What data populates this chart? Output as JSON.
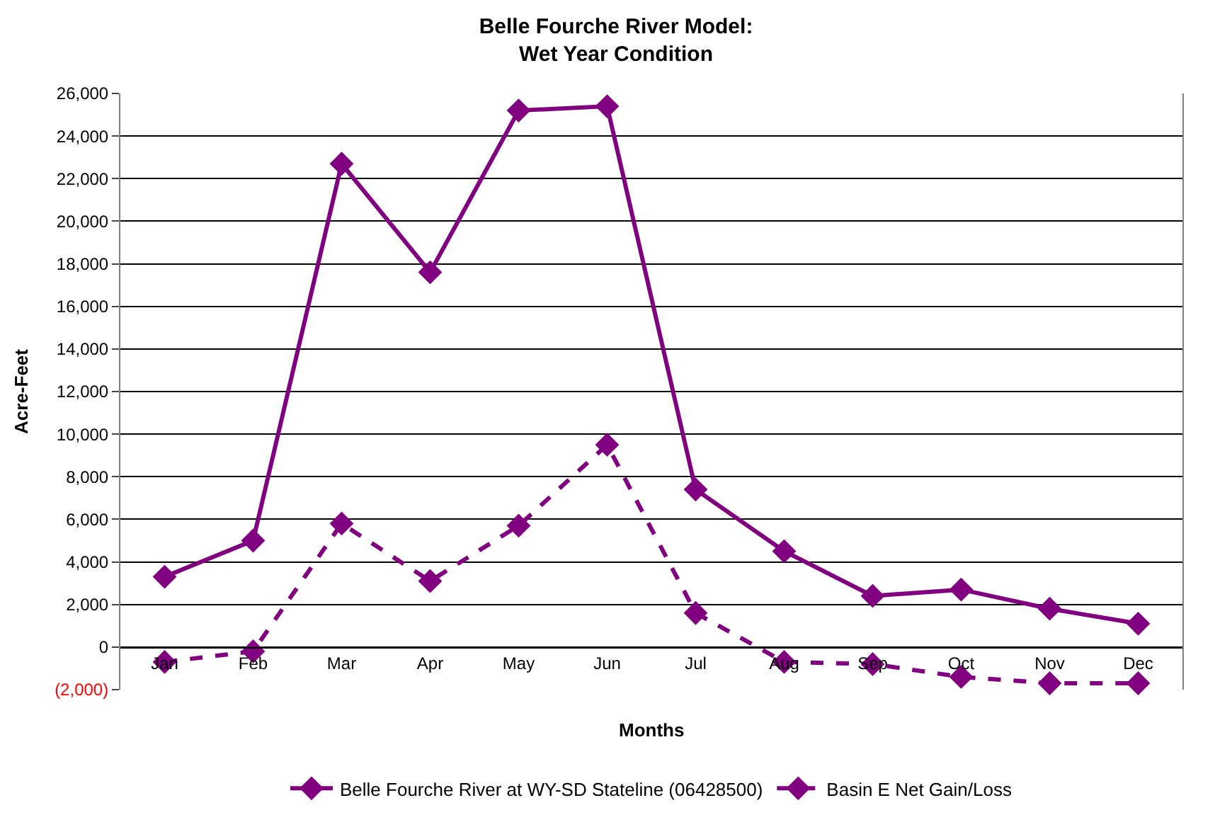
{
  "chart_data": {
    "type": "line",
    "title": "Belle Fourche River Model:\nWet Year Condition",
    "xlabel": "Months",
    "ylabel": "Acre-Feet",
    "categories": [
      "Jan",
      "Feb",
      "Mar",
      "Apr",
      "May",
      "Jun",
      "Jul",
      "Aug",
      "Sep",
      "Oct",
      "Nov",
      "Dec"
    ],
    "series": [
      {
        "name": "Belle Fourche River at WY-SD Stateline (06428500)",
        "color": "#800080",
        "line_style": "solid",
        "values": [
          3300,
          5000,
          22700,
          17600,
          25200,
          25400,
          7400,
          4500,
          2400,
          2700,
          1800,
          1100
        ]
      },
      {
        "name": "Basin E Net Gain/Loss",
        "color": "#800080",
        "line_style": "dashed",
        "values": [
          -700,
          -200,
          5800,
          3100,
          5700,
          9500,
          1600,
          -700,
          -800,
          -1400,
          -1700,
          -1700
        ]
      }
    ],
    "ylim": [
      -2000,
      26000
    ],
    "yticks": [
      {
        "value": -2000,
        "label": "(2,000)"
      },
      {
        "value": 0,
        "label": "0"
      },
      {
        "value": 2000,
        "label": "2,000"
      },
      {
        "value": 4000,
        "label": "4,000"
      },
      {
        "value": 6000,
        "label": "6,000"
      },
      {
        "value": 8000,
        "label": "8,000"
      },
      {
        "value": 10000,
        "label": "10,000"
      },
      {
        "value": 12000,
        "label": "12,000"
      },
      {
        "value": 14000,
        "label": "14,000"
      },
      {
        "value": 16000,
        "label": "16,000"
      },
      {
        "value": 18000,
        "label": "18,000"
      },
      {
        "value": 20000,
        "label": "20,000"
      },
      {
        "value": 22000,
        "label": "22,000"
      },
      {
        "value": 24000,
        "label": "24,000"
      },
      {
        "value": 26000,
        "label": "26,000"
      }
    ],
    "grid": "y",
    "legend": "bottom",
    "marker": "diamond"
  }
}
